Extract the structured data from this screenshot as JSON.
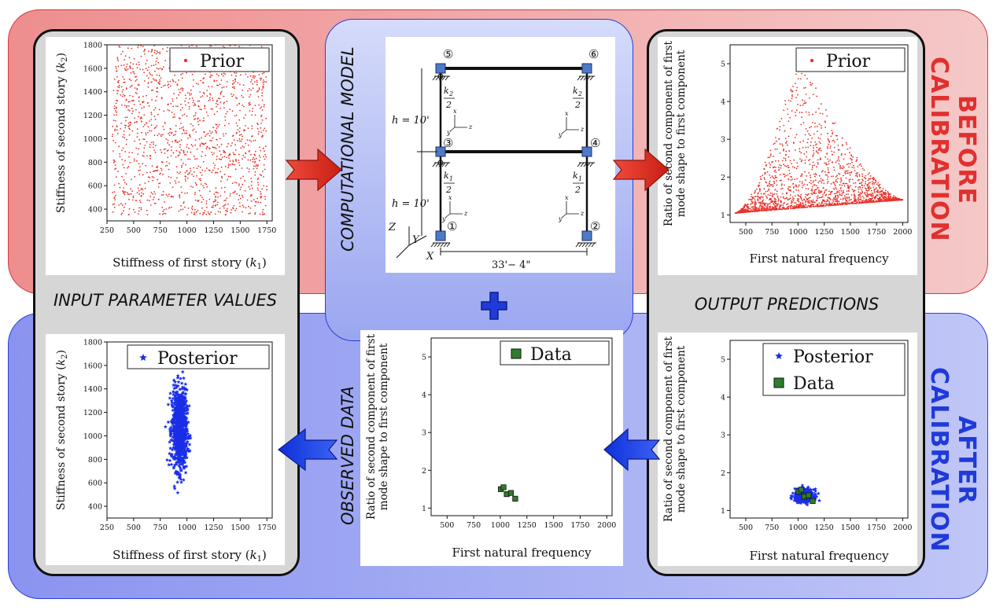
{
  "labels": {
    "before_calibration": "BEFORE CALIBRATION",
    "after_calibration": "AFTER CALIBRATION",
    "input_parameter_values": "INPUT PARAMETER VALUES",
    "output_predictions": "OUTPUT PREDICTIONS",
    "computational_model": "COMPUTATIONAL MODEL",
    "observed_data": "OBSERVED DATA"
  },
  "colors": {
    "prior": "#e8332a",
    "posterior": "#1a2ee8",
    "data_fill": "#2f7d2a",
    "before": "#e0302f",
    "after": "#1f3ad8"
  },
  "frame": {
    "node_labels": [
      "①",
      "②",
      "③",
      "④",
      "⑤",
      "⑥"
    ],
    "h_upper": "h = 10'",
    "h_lower": "h = 10'",
    "k2_num": "k",
    "k2_sub": "2",
    "k1_num": "k",
    "k1_sub": "1",
    "den": "2",
    "span": "33'− 4\"",
    "axis_z": "Z",
    "axis_y": "Y",
    "axis_x": "X",
    "local_x": "x",
    "local_y": "y",
    "local_z": "z"
  },
  "chart_data": [
    {
      "id": "prior-input",
      "type": "scatter",
      "xlabel": "Stiffness of first story (k1)",
      "ylabel": "Stiffness of second story (k2)",
      "xlim": [
        250,
        1800
      ],
      "ylim": [
        300,
        1800
      ],
      "xticks": [
        250,
        500,
        750,
        1000,
        1250,
        1500,
        1750
      ],
      "yticks": [
        400,
        600,
        800,
        1000,
        1200,
        1400,
        1600,
        1800
      ],
      "legend": [
        "Prior"
      ],
      "legend_position": "top-right",
      "series": [
        {
          "name": "Prior",
          "marker": "dot",
          "color": "#e8332a",
          "distribution": "uniform",
          "x_range": [
            300,
            1750
          ],
          "y_range": [
            350,
            1800
          ],
          "count": 1500
        }
      ]
    },
    {
      "id": "prior-output",
      "type": "scatter",
      "xlabel": "First natural frequency",
      "ylabel": "Ratio of second component of first mode shape to first component",
      "xlim": [
        350,
        2050
      ],
      "ylim": [
        0.8,
        5.5
      ],
      "xticks": [
        500,
        750,
        1000,
        1250,
        1500,
        1750,
        2000
      ],
      "yticks": [
        1,
        2,
        3,
        4,
        5
      ],
      "legend": [
        "Prior"
      ],
      "legend_position": "top-right",
      "series": [
        {
          "name": "Prior",
          "marker": "dot",
          "color": "#e8332a",
          "distribution": "fan",
          "x_range": [
            400,
            2000
          ],
          "y_min": 1.05,
          "y_peak": 5.3,
          "peak_x": 1000,
          "count": 2000
        }
      ]
    },
    {
      "id": "observed",
      "type": "scatter",
      "xlabel": "First natural frequency",
      "ylabel": "Ratio of second component of first mode shape to first component",
      "xlim": [
        350,
        2050
      ],
      "ylim": [
        0.8,
        5.5
      ],
      "xticks": [
        500,
        750,
        1000,
        1250,
        1500,
        1750,
        2000
      ],
      "yticks": [
        1,
        2,
        3,
        4,
        5
      ],
      "legend": [
        "Data"
      ],
      "legend_position": "top-right",
      "series": [
        {
          "name": "Data",
          "marker": "square",
          "color": "#2f7d2a",
          "points": [
            [
              1005,
              1.5
            ],
            [
              1030,
              1.55
            ],
            [
              1060,
              1.37
            ],
            [
              1100,
              1.4
            ],
            [
              1140,
              1.25
            ]
          ]
        }
      ]
    },
    {
      "id": "posterior-output",
      "type": "scatter",
      "xlabel": "First natural frequency",
      "ylabel": "Ratio of second component of first mode shape to first component",
      "xlim": [
        350,
        2050
      ],
      "ylim": [
        0.8,
        5.5
      ],
      "xticks": [
        500,
        750,
        1000,
        1250,
        1500,
        1750,
        2000
      ],
      "yticks": [
        1,
        2,
        3,
        4,
        5
      ],
      "legend": [
        "Posterior",
        "Data"
      ],
      "legend_position": "top-right",
      "series": [
        {
          "name": "Posterior",
          "marker": "star",
          "color": "#1a2ee8",
          "distribution": "cluster",
          "center": [
            1060,
            1.4
          ],
          "spread": [
            45,
            0.08
          ],
          "count": 500
        },
        {
          "name": "Data",
          "marker": "square",
          "color": "#2f7d2a",
          "points": [
            [
              1005,
              1.5
            ],
            [
              1030,
              1.55
            ],
            [
              1060,
              1.37
            ],
            [
              1100,
              1.4
            ],
            [
              1140,
              1.25
            ]
          ]
        }
      ]
    },
    {
      "id": "posterior-input",
      "type": "scatter",
      "xlabel": "Stiffness of first story (k1)",
      "ylabel": "Stiffness of second story (k2)",
      "xlim": [
        250,
        1800
      ],
      "ylim": [
        300,
        1800
      ],
      "xticks": [
        250,
        500,
        750,
        1000,
        1250,
        1500,
        1750
      ],
      "yticks": [
        400,
        600,
        800,
        1000,
        1200,
        1400,
        1600,
        1800
      ],
      "legend": [
        "Posterior"
      ],
      "legend_position": "top-right",
      "series": [
        {
          "name": "Posterior",
          "marker": "star",
          "color": "#1a2ee8",
          "distribution": "cluster",
          "center": [
            930,
            1050
          ],
          "spread": [
            35,
            170
          ],
          "count": 900
        }
      ]
    }
  ]
}
